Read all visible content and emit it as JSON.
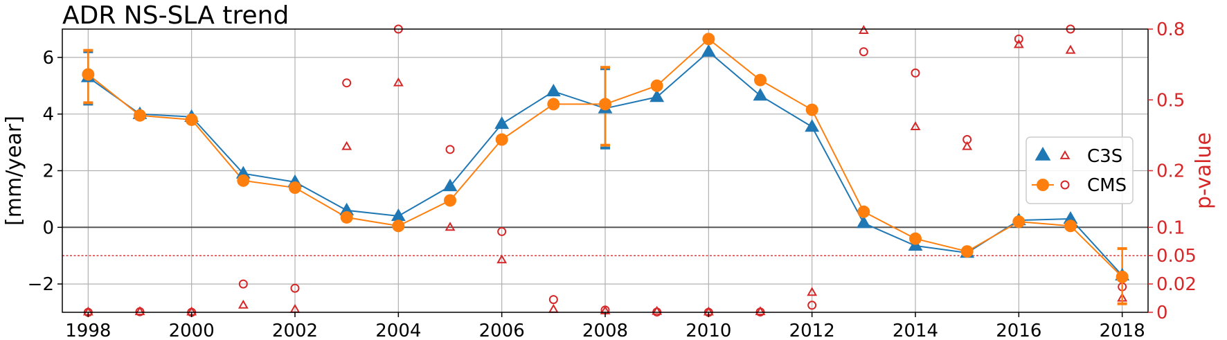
{
  "chart_data": {
    "type": "line",
    "title": "ADR NS-SLA trend",
    "ylabel": "[mm/year]",
    "y2label": "p-value",
    "x": [
      1998,
      1999,
      2000,
      2001,
      2002,
      2003,
      2004,
      2005,
      2006,
      2007,
      2008,
      2009,
      2010,
      2011,
      2012,
      2013,
      2014,
      2015,
      2016,
      2017,
      2018
    ],
    "xticks": [
      1998,
      2000,
      2002,
      2004,
      2006,
      2008,
      2010,
      2012,
      2014,
      2016,
      2018
    ],
    "xlim": [
      1997.5,
      2018.5
    ],
    "ylim": [
      -3,
      7
    ],
    "yticks": [
      {
        "value": -2,
        "label": "−2"
      },
      {
        "value": 0,
        "label": "0"
      },
      {
        "value": 2,
        "label": "2"
      },
      {
        "value": 4,
        "label": "4"
      },
      {
        "value": 6,
        "label": "6"
      }
    ],
    "y2ticks": [
      {
        "value": 0,
        "label": "0"
      },
      {
        "value": 0.02,
        "label": "0.02"
      },
      {
        "value": 0.05,
        "label": "0.05"
      },
      {
        "value": 0.1,
        "label": "0.1"
      },
      {
        "value": 0.2,
        "label": "0.2"
      },
      {
        "value": 0.5,
        "label": "0.5"
      },
      {
        "value": 0.8,
        "label": "0.8"
      }
    ],
    "y2_scale_map": {
      "pvalues": [
        0,
        0.02,
        0.05,
        0.1,
        0.2,
        0.5,
        0.8
      ],
      "left_axis_equivalent": [
        -3,
        -2,
        -1,
        0,
        2,
        4.5,
        7
      ]
    },
    "significance_line": 0.05,
    "grid": true,
    "zero_line": true,
    "legend": "center-right",
    "series": [
      {
        "name": "C3S",
        "color": "#1f77b4",
        "marker": "triangle",
        "values": [
          5.3,
          4.0,
          3.9,
          1.9,
          1.6,
          0.6,
          0.4,
          1.45,
          3.65,
          4.8,
          4.2,
          4.6,
          6.2,
          4.65,
          3.55,
          0.15,
          -0.65,
          -0.9,
          0.25,
          0.3,
          -1.7
        ],
        "error_bars": [
          {
            "x": 1998,
            "low": 4.35,
            "high": 6.2
          },
          {
            "x": 2008,
            "low": 2.8,
            "high": 5.6
          }
        ],
        "pvalue_axis_positions": [
          -2.99,
          -2.98,
          -2.99,
          -2.75,
          -2.9,
          2.85,
          5.1,
          0.0,
          -1.15,
          -2.9,
          -2.95,
          -2.97,
          -2.99,
          -2.98,
          -2.3,
          6.95,
          3.55,
          2.85,
          6.45,
          6.25,
          -2.5
        ]
      },
      {
        "name": "CMS",
        "color": "#ff7f0e",
        "marker": "circle",
        "values": [
          5.4,
          3.95,
          3.8,
          1.65,
          1.4,
          0.35,
          0.05,
          0.95,
          3.1,
          4.35,
          4.35,
          5.0,
          6.65,
          5.2,
          4.15,
          0.55,
          -0.4,
          -0.85,
          0.2,
          0.05,
          -1.75
        ],
        "error_bars": [
          {
            "x": 1998,
            "low": 4.4,
            "high": 6.25
          },
          {
            "x": 2008,
            "low": 2.9,
            "high": 5.65
          },
          {
            "x": 2018,
            "low": -2.7,
            "high": -0.75
          }
        ],
        "pvalue_axis_positions": [
          -3.0,
          -2.98,
          -3.0,
          -2.0,
          -2.15,
          5.1,
          7.0,
          2.75,
          -0.15,
          -2.55,
          -2.92,
          -2.99,
          -3.0,
          -2.99,
          -2.75,
          6.2,
          5.45,
          3.1,
          6.65,
          7.0,
          -2.1
        ]
      }
    ]
  }
}
